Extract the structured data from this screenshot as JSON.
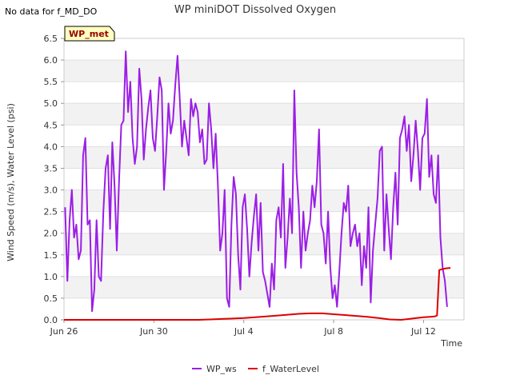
{
  "no_data_note": "No data for f_MD_DO",
  "site_badge": "WP_met",
  "chart_data": {
    "type": "line",
    "title": "WP miniDOT Dissolved Oxygen",
    "xlabel": "Time",
    "ylabel": "Wind Speed (m/s), Water Level (psi)",
    "x_unit": "days since Jun 26",
    "xlim": [
      0,
      17.8
    ],
    "ylim": [
      0,
      6.5
    ],
    "x_ticks": [
      {
        "value": 0,
        "label": "Jun 26"
      },
      {
        "value": 4,
        "label": "Jun 30"
      },
      {
        "value": 8,
        "label": "Jul 4"
      },
      {
        "value": 12,
        "label": "Jul 8"
      },
      {
        "value": 16,
        "label": "Jul 12"
      }
    ],
    "y_ticks": [
      0.0,
      0.5,
      1.0,
      1.5,
      2.0,
      2.5,
      3.0,
      3.5,
      4.0,
      4.5,
      5.0,
      5.5,
      6.0,
      6.5
    ],
    "grid": "horizontal alternating bands",
    "legend_position": "bottom",
    "series": [
      {
        "name": "WP_ws",
        "color": "#9b1ee6",
        "x": [
          0.05,
          0.15,
          0.25,
          0.35,
          0.45,
          0.55,
          0.65,
          0.75,
          0.85,
          0.95,
          1.05,
          1.15,
          1.25,
          1.35,
          1.45,
          1.55,
          1.65,
          1.75,
          1.85,
          1.95,
          2.05,
          2.15,
          2.25,
          2.35,
          2.45,
          2.55,
          2.65,
          2.75,
          2.85,
          2.95,
          3.05,
          3.15,
          3.25,
          3.35,
          3.45,
          3.55,
          3.65,
          3.75,
          3.85,
          3.95,
          4.05,
          4.15,
          4.25,
          4.35,
          4.45,
          4.55,
          4.65,
          4.75,
          4.85,
          4.95,
          5.05,
          5.15,
          5.25,
          5.35,
          5.45,
          5.55,
          5.65,
          5.75,
          5.85,
          5.95,
          6.05,
          6.15,
          6.25,
          6.35,
          6.45,
          6.55,
          6.65,
          6.75,
          6.85,
          6.95,
          7.05,
          7.15,
          7.25,
          7.35,
          7.45,
          7.55,
          7.65,
          7.75,
          7.85,
          7.95,
          8.05,
          8.15,
          8.25,
          8.35,
          8.45,
          8.55,
          8.65,
          8.75,
          8.85,
          8.95,
          9.05,
          9.15,
          9.25,
          9.35,
          9.45,
          9.55,
          9.65,
          9.75,
          9.85,
          9.95,
          10.05,
          10.15,
          10.25,
          10.35,
          10.45,
          10.55,
          10.65,
          10.75,
          10.85,
          10.95,
          11.05,
          11.15,
          11.25,
          11.35,
          11.45,
          11.55,
          11.65,
          11.75,
          11.85,
          11.95,
          12.05,
          12.15,
          12.25,
          12.35,
          12.45,
          12.55,
          12.65,
          12.75,
          12.85,
          12.95,
          13.05,
          13.15,
          13.25,
          13.35,
          13.45,
          13.55,
          13.65,
          13.75,
          13.85,
          13.95,
          14.05,
          14.15,
          14.25,
          14.35,
          14.45,
          14.55,
          14.65,
          14.75,
          14.85,
          14.95,
          15.05,
          15.15,
          15.25,
          15.35,
          15.45,
          15.55,
          15.65,
          15.75,
          15.85,
          15.95,
          16.05,
          16.15,
          16.25,
          16.35,
          16.45,
          16.55,
          16.65,
          16.75,
          16.85,
          16.95,
          17.05
        ],
        "y": [
          2.6,
          0.9,
          2.3,
          3.0,
          1.9,
          2.2,
          1.4,
          1.6,
          3.8,
          4.2,
          2.2,
          2.3,
          0.2,
          0.7,
          2.3,
          1.0,
          0.9,
          2.5,
          3.5,
          3.8,
          2.1,
          4.1,
          3.1,
          1.6,
          3.2,
          4.5,
          4.6,
          6.2,
          4.8,
          5.5,
          4.2,
          3.6,
          4.0,
          5.8,
          5.1,
          3.7,
          4.4,
          4.9,
          5.3,
          4.2,
          3.9,
          4.7,
          5.6,
          5.3,
          3.0,
          3.9,
          5.0,
          4.3,
          4.6,
          5.4,
          6.1,
          5.1,
          4.0,
          4.6,
          4.2,
          3.8,
          5.1,
          4.7,
          5.0,
          4.8,
          4.1,
          4.4,
          3.6,
          3.7,
          5.0,
          4.4,
          3.5,
          4.3,
          3.1,
          1.6,
          2.0,
          3.0,
          0.5,
          0.3,
          2.2,
          3.3,
          2.9,
          1.5,
          0.7,
          2.6,
          2.9,
          2.1,
          1.0,
          1.8,
          2.4,
          2.9,
          1.6,
          2.7,
          1.1,
          0.9,
          0.6,
          0.3,
          1.3,
          0.7,
          2.3,
          2.6,
          1.9,
          3.6,
          1.2,
          1.9,
          2.8,
          2.0,
          5.3,
          3.4,
          2.6,
          1.2,
          2.5,
          1.6,
          2.0,
          2.3,
          3.1,
          2.6,
          3.2,
          4.4,
          2.2,
          2.0,
          1.3,
          2.5,
          1.2,
          0.5,
          0.8,
          0.3,
          1.1,
          2.0,
          2.7,
          2.5,
          3.1,
          1.7,
          2.0,
          2.2,
          1.7,
          2.0,
          0.8,
          1.7,
          1.2,
          2.6,
          0.4,
          1.6,
          2.2,
          2.8,
          3.9,
          4.0,
          1.6,
          2.9,
          2.1,
          1.4,
          2.6,
          3.4,
          2.2,
          4.2,
          4.4,
          4.7,
          3.9,
          4.5,
          3.2,
          3.8,
          4.6,
          3.9,
          3.0,
          4.2,
          4.3,
          5.1,
          3.3,
          3.8,
          2.9,
          2.7,
          3.8,
          1.9,
          1.2,
          0.9,
          0.3
        ]
      },
      {
        "name": "f_WaterLevel",
        "color": "#dd0000",
        "x": [
          0,
          3.0,
          6.0,
          6.5,
          7.0,
          7.5,
          8.0,
          8.5,
          9.0,
          9.5,
          10.0,
          10.5,
          11.0,
          11.5,
          12.0,
          12.5,
          13.0,
          13.5,
          14.0,
          14.5,
          15.0,
          15.5,
          16.0,
          16.3,
          16.5,
          16.6,
          16.7,
          16.9,
          17.0,
          17.2
        ],
        "y": [
          0,
          0,
          0,
          0.01,
          0.02,
          0.03,
          0.04,
          0.06,
          0.08,
          0.1,
          0.12,
          0.14,
          0.15,
          0.15,
          0.13,
          0.11,
          0.09,
          0.07,
          0.04,
          0.01,
          0.0,
          0.03,
          0.06,
          0.07,
          0.08,
          0.1,
          1.15,
          1.18,
          1.19,
          1.2
        ]
      }
    ]
  }
}
